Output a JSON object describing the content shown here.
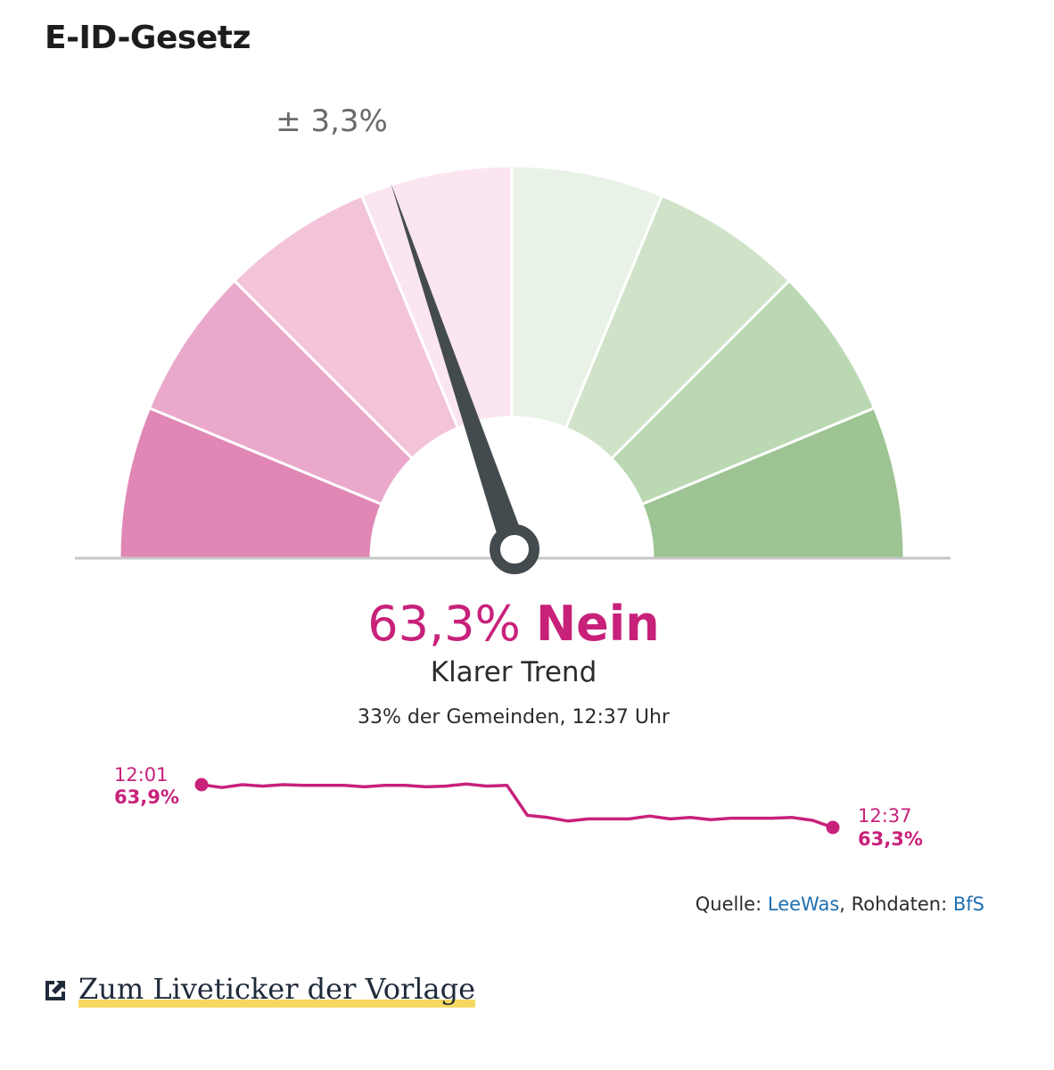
{
  "title": "E-ID-Gesetz",
  "gauge": {
    "margin_label": "± 3,3%",
    "needle_value_pct_nein": 63.3,
    "segments_colors": [
      "#e087b6",
      "#eaa9cb",
      "#f3c3da",
      "#fbe5f1",
      "#e9f2e6",
      "#d0e3c8",
      "#bad8b1",
      "#9dc492"
    ]
  },
  "result": {
    "value": "63,3%",
    "label": "Nein",
    "trend": "Klarer Trend",
    "subtitle": "33% der Gemeinden, 12:37 Uhr"
  },
  "chart_data": {
    "type": "line",
    "title": "",
    "x": [
      0,
      0.5,
      1,
      1.5,
      2,
      2.5,
      3,
      3.5,
      4,
      4.5,
      5,
      5.5,
      6,
      6.5,
      7,
      7.5,
      8,
      8.5,
      9,
      9.5,
      10,
      10.5,
      11,
      11.5,
      12,
      12.5,
      13,
      13.5,
      14,
      14.5,
      15,
      15.5
    ],
    "series": [
      {
        "name": "Nein",
        "values": [
          63.9,
          63.86,
          63.9,
          63.88,
          63.9,
          63.89,
          63.89,
          63.89,
          63.87,
          63.89,
          63.89,
          63.87,
          63.88,
          63.91,
          63.88,
          63.89,
          63.47,
          63.44,
          63.39,
          63.42,
          63.42,
          63.42,
          63.46,
          63.42,
          63.44,
          63.41,
          63.43,
          63.43,
          63.43,
          63.44,
          63.4,
          63.3
        ]
      }
    ],
    "start": {
      "time": "12:01",
      "value": "63,9%"
    },
    "end": {
      "time": "12:37",
      "value": "63,3%"
    },
    "color": "#c8217a"
  },
  "source": {
    "prefix": "Quelle:",
    "source_name": "LeeWas",
    "raw_prefix": ", Rohdaten:",
    "raw_name": "BfS"
  },
  "link": {
    "label": "Zum Liveticker der Vorlage",
    "icon": "external-link-icon"
  }
}
